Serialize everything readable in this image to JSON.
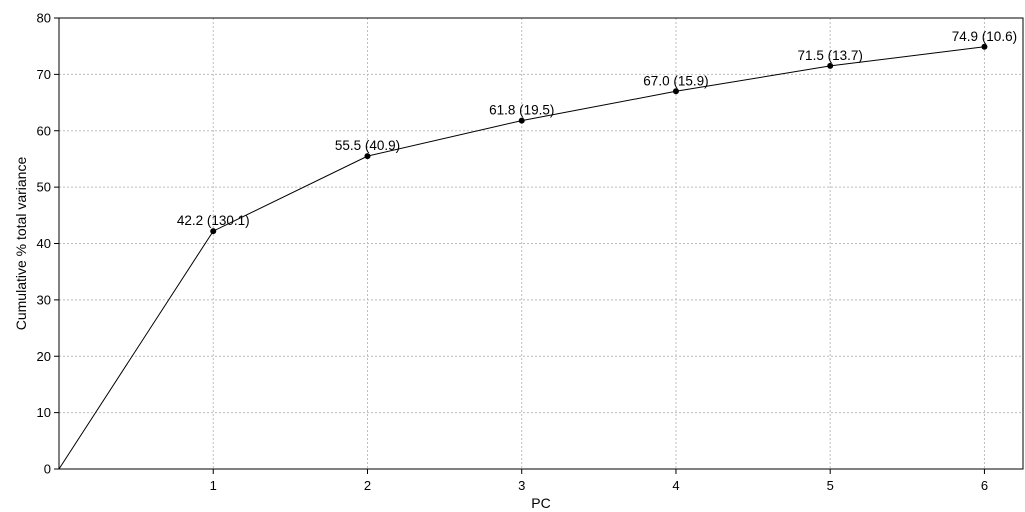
{
  "chart_data": {
    "type": "line",
    "title": "",
    "xlabel": "PC",
    "ylabel": "Cumulative % total variance",
    "xlim": [
      0,
      6.25
    ],
    "ylim": [
      0,
      80
    ],
    "x_ticks": [
      1,
      2,
      3,
      4,
      5,
      6
    ],
    "y_ticks": [
      0,
      10,
      20,
      30,
      40,
      50,
      60,
      70,
      80
    ],
    "grid": true,
    "series": [
      {
        "x": [
          0,
          1,
          2,
          3,
          4,
          5,
          6
        ],
        "values": [
          0,
          42.2,
          55.5,
          61.8,
          67.0,
          71.5,
          74.9
        ],
        "markers": [
          false,
          true,
          true,
          true,
          true,
          true,
          true
        ]
      }
    ],
    "data_labels": [
      {
        "x": 1,
        "y": 42.2,
        "text": "42.2 (130.1)"
      },
      {
        "x": 2,
        "y": 55.5,
        "text": "55.5 (40.9)"
      },
      {
        "x": 3,
        "y": 61.8,
        "text": "61.8 (19.5)"
      },
      {
        "x": 4,
        "y": 67.0,
        "text": "67.0 (15.9)"
      },
      {
        "x": 5,
        "y": 71.5,
        "text": "71.5 (13.7)"
      },
      {
        "x": 6,
        "y": 74.9,
        "text": "74.9 (10.6)"
      }
    ],
    "colors": {
      "line": "#000000",
      "grid": "#bdbdbd",
      "background": "#ffffff"
    }
  }
}
